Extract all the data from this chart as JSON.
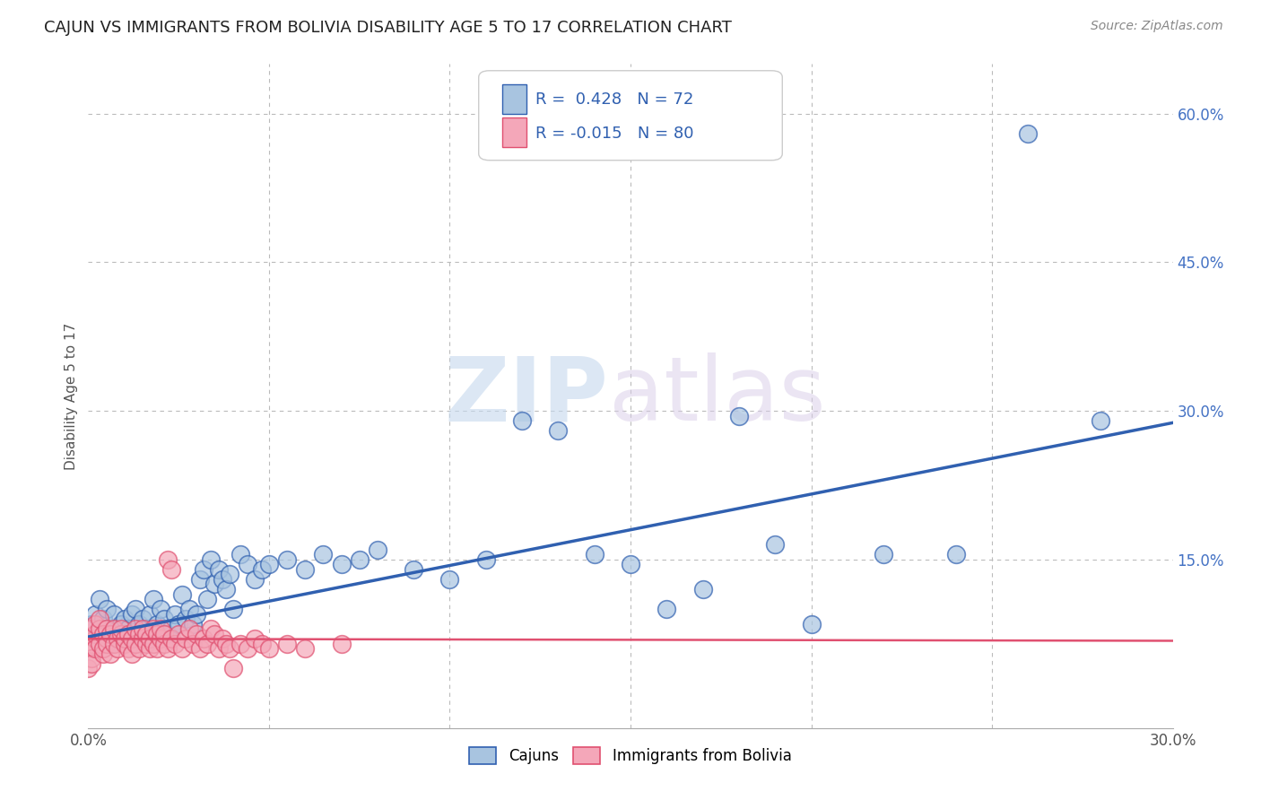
{
  "title": "CAJUN VS IMMIGRANTS FROM BOLIVIA DISABILITY AGE 5 TO 17 CORRELATION CHART",
  "source": "Source: ZipAtlas.com",
  "ylabel": "Disability Age 5 to 17",
  "xlim": [
    0.0,
    0.3
  ],
  "ylim": [
    -0.02,
    0.65
  ],
  "ytick_labels_right": [
    "60.0%",
    "45.0%",
    "30.0%",
    "15.0%",
    ""
  ],
  "ytick_positions_right": [
    0.6,
    0.45,
    0.3,
    0.15,
    0.0
  ],
  "cajun_R": 0.428,
  "cajun_N": 72,
  "bolivia_R": -0.015,
  "bolivia_N": 80,
  "cajun_color": "#a8c4e0",
  "bolivia_color": "#f4a7b9",
  "cajun_line_color": "#3060b0",
  "bolivia_line_color": "#e05070",
  "background_color": "#ffffff",
  "grid_color": "#bbbbbb",
  "cajun_x": [
    0.001,
    0.002,
    0.003,
    0.003,
    0.004,
    0.005,
    0.005,
    0.006,
    0.007,
    0.007,
    0.008,
    0.009,
    0.01,
    0.01,
    0.011,
    0.012,
    0.013,
    0.014,
    0.014,
    0.015,
    0.016,
    0.017,
    0.018,
    0.019,
    0.02,
    0.021,
    0.022,
    0.023,
    0.024,
    0.025,
    0.026,
    0.027,
    0.028,
    0.029,
    0.03,
    0.031,
    0.032,
    0.033,
    0.034,
    0.035,
    0.036,
    0.037,
    0.038,
    0.039,
    0.04,
    0.042,
    0.044,
    0.046,
    0.048,
    0.05,
    0.055,
    0.06,
    0.065,
    0.07,
    0.075,
    0.08,
    0.09,
    0.1,
    0.11,
    0.12,
    0.13,
    0.14,
    0.15,
    0.16,
    0.17,
    0.18,
    0.19,
    0.2,
    0.22,
    0.24,
    0.26,
    0.28
  ],
  "cajun_y": [
    0.085,
    0.095,
    0.075,
    0.11,
    0.09,
    0.08,
    0.1,
    0.065,
    0.07,
    0.095,
    0.075,
    0.085,
    0.09,
    0.07,
    0.08,
    0.095,
    0.1,
    0.075,
    0.085,
    0.09,
    0.08,
    0.095,
    0.11,
    0.085,
    0.1,
    0.09,
    0.075,
    0.08,
    0.095,
    0.085,
    0.115,
    0.09,
    0.1,
    0.085,
    0.095,
    0.13,
    0.14,
    0.11,
    0.15,
    0.125,
    0.14,
    0.13,
    0.12,
    0.135,
    0.1,
    0.155,
    0.145,
    0.13,
    0.14,
    0.145,
    0.15,
    0.14,
    0.155,
    0.145,
    0.15,
    0.16,
    0.14,
    0.13,
    0.15,
    0.29,
    0.28,
    0.155,
    0.145,
    0.1,
    0.12,
    0.295,
    0.165,
    0.085,
    0.155,
    0.155,
    0.58,
    0.29
  ],
  "bolivia_x": [
    0.0,
    0.0,
    0.001,
    0.001,
    0.001,
    0.001,
    0.002,
    0.002,
    0.002,
    0.002,
    0.003,
    0.003,
    0.003,
    0.004,
    0.004,
    0.004,
    0.005,
    0.005,
    0.005,
    0.006,
    0.006,
    0.007,
    0.007,
    0.008,
    0.008,
    0.009,
    0.009,
    0.01,
    0.01,
    0.011,
    0.011,
    0.012,
    0.012,
    0.013,
    0.013,
    0.014,
    0.014,
    0.015,
    0.015,
    0.016,
    0.016,
    0.017,
    0.017,
    0.018,
    0.018,
    0.019,
    0.019,
    0.02,
    0.02,
    0.021,
    0.021,
    0.022,
    0.022,
    0.023,
    0.023,
    0.024,
    0.025,
    0.026,
    0.027,
    0.028,
    0.029,
    0.03,
    0.031,
    0.032,
    0.033,
    0.034,
    0.035,
    0.036,
    0.037,
    0.038,
    0.039,
    0.04,
    0.042,
    0.044,
    0.046,
    0.048,
    0.05,
    0.055,
    0.06,
    0.07
  ],
  "bolivia_y": [
    0.06,
    0.04,
    0.065,
    0.08,
    0.05,
    0.045,
    0.07,
    0.075,
    0.06,
    0.085,
    0.065,
    0.08,
    0.09,
    0.055,
    0.075,
    0.06,
    0.07,
    0.08,
    0.065,
    0.075,
    0.055,
    0.08,
    0.065,
    0.07,
    0.06,
    0.075,
    0.08,
    0.065,
    0.07,
    0.075,
    0.06,
    0.055,
    0.07,
    0.08,
    0.065,
    0.075,
    0.06,
    0.07,
    0.08,
    0.065,
    0.075,
    0.06,
    0.07,
    0.065,
    0.08,
    0.075,
    0.06,
    0.07,
    0.08,
    0.065,
    0.075,
    0.06,
    0.15,
    0.14,
    0.07,
    0.065,
    0.075,
    0.06,
    0.07,
    0.08,
    0.065,
    0.075,
    0.06,
    0.07,
    0.065,
    0.08,
    0.075,
    0.06,
    0.07,
    0.065,
    0.06,
    0.04,
    0.065,
    0.06,
    0.07,
    0.065,
    0.06,
    0.065,
    0.06,
    0.065
  ],
  "cajun_trend_x": [
    0.0,
    0.3
  ],
  "cajun_trend_y": [
    0.072,
    0.288
  ],
  "bolivia_trend_x": [
    0.0,
    0.3
  ],
  "bolivia_trend_y": [
    0.07,
    0.068
  ]
}
